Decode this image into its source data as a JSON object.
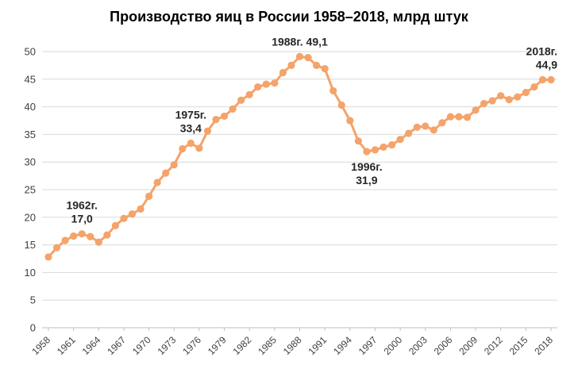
{
  "chart_data": {
    "type": "line",
    "title": "Производство яиц в России 1958–2018, млрд штук",
    "xlabel": "",
    "ylabel": "",
    "ylim": [
      0,
      50
    ],
    "yticks": [
      0,
      5,
      10,
      15,
      20,
      25,
      30,
      35,
      40,
      45,
      50
    ],
    "grid": true,
    "legend": "none",
    "xtick_labels": [
      "1958",
      "1961",
      "1964",
      "1967",
      "1970",
      "1973",
      "1976",
      "1979",
      "1982",
      "1985",
      "1988",
      "1991",
      "1994",
      "1997",
      "2000",
      "2003",
      "2006",
      "2009",
      "2012",
      "2015",
      "2018"
    ],
    "series": [
      {
        "name": "Производство яиц",
        "color": "#f4a36a",
        "x": [
          1958,
          1959,
          1960,
          1961,
          1962,
          1963,
          1964,
          1965,
          1966,
          1967,
          1968,
          1969,
          1970,
          1971,
          1972,
          1973,
          1974,
          1975,
          1976,
          1977,
          1978,
          1979,
          1980,
          1981,
          1982,
          1983,
          1984,
          1985,
          1986,
          1987,
          1988,
          1989,
          1990,
          1991,
          1992,
          1993,
          1994,
          1995,
          1996,
          1997,
          1998,
          1999,
          2000,
          2001,
          2002,
          2003,
          2004,
          2005,
          2006,
          2007,
          2008,
          2009,
          2010,
          2011,
          2012,
          2013,
          2014,
          2015,
          2016,
          2017,
          2018
        ],
        "values": [
          12.8,
          14.5,
          15.8,
          16.6,
          17.0,
          16.5,
          15.5,
          16.8,
          18.5,
          19.8,
          20.6,
          21.5,
          23.8,
          26.3,
          28.0,
          29.5,
          32.4,
          33.4,
          32.5,
          35.6,
          37.7,
          38.3,
          39.6,
          41.2,
          42.2,
          43.6,
          44.1,
          44.3,
          46.2,
          47.5,
          49.1,
          48.9,
          47.5,
          46.9,
          42.9,
          40.3,
          37.5,
          33.8,
          31.9,
          32.2,
          32.7,
          33.1,
          34.1,
          35.2,
          36.3,
          36.5,
          35.8,
          37.1,
          38.2,
          38.2,
          38.1,
          39.4,
          40.6,
          41.1,
          42.0,
          41.3,
          41.8,
          42.6,
          43.6,
          44.9,
          44.9
        ]
      }
    ],
    "annotations": [
      {
        "year": 1962,
        "value": 17.0,
        "line1": "1962г.",
        "line2": "17,0",
        "position": "above"
      },
      {
        "year": 1975,
        "value": 33.4,
        "line1": "1975г.",
        "line2": "33,4",
        "position": "above"
      },
      {
        "year": 1988,
        "value": 49.1,
        "line1": "1988г. 49,1",
        "line2": "",
        "position": "above"
      },
      {
        "year": 1996,
        "value": 31.9,
        "line1": "1996г.",
        "line2": "31,9",
        "position": "below"
      },
      {
        "year": 2018,
        "value": 44.9,
        "line1": "2018г.",
        "line2": "44,9",
        "position": "above"
      }
    ]
  }
}
